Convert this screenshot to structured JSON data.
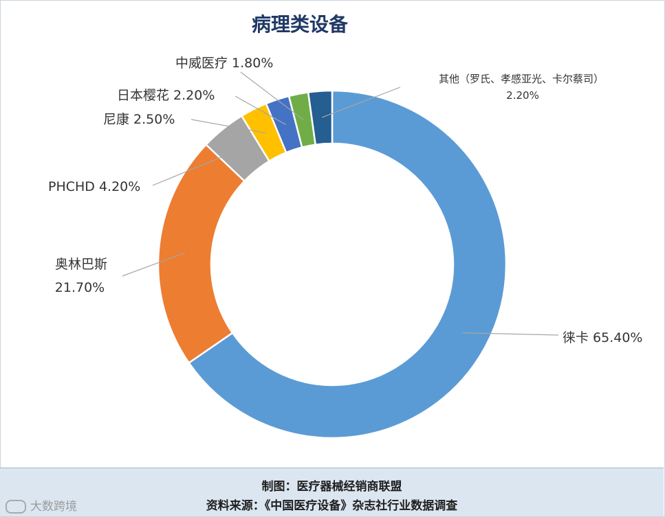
{
  "chart_data": {
    "type": "pie",
    "title": "病理类设备",
    "slices": [
      {
        "name": "徕卡",
        "value": 65.4,
        "label": "徕卡 65.40%",
        "color": "#5b9bd5"
      },
      {
        "name": "奥林巴斯",
        "value": 21.7,
        "label_line1": "奥林巴斯",
        "label_line2": "21.70%",
        "color": "#ed7d31"
      },
      {
        "name": "PHCHD",
        "value": 4.2,
        "label": "PHCHD 4.20%",
        "color": "#a5a5a5"
      },
      {
        "name": "尼康",
        "value": 2.5,
        "label": "尼康 2.50%",
        "color": "#ffc000"
      },
      {
        "name": "日本樱花",
        "value": 2.2,
        "label": "日本樱花 2.20%",
        "color": "#4472c4"
      },
      {
        "name": "中威医疗",
        "value": 1.8,
        "label": "中威医疗 1.80%",
        "color": "#70ad47"
      },
      {
        "name": "其他（罗氏、孝感亚光、卡尔蔡司）",
        "value": 2.2,
        "label_line1": "其他（罗氏、孝感亚光、卡尔蔡司）",
        "label_line2": "2.20%",
        "color": "#255e91"
      }
    ]
  },
  "footer": {
    "line1": "制图：医疗器械经销商联盟",
    "line2": "资料来源：《中国医疗设备》杂志社行业数据调查"
  },
  "watermark": "大数跨境"
}
